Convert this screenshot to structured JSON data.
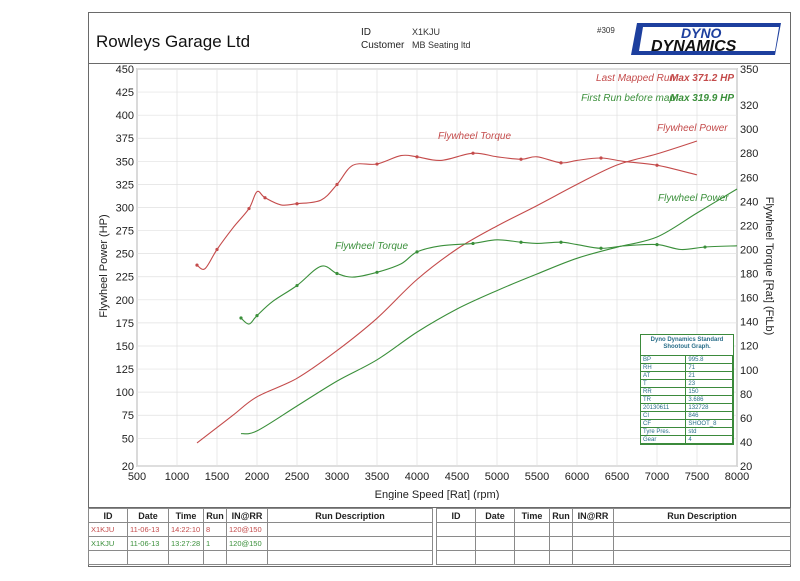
{
  "header": {
    "garage_name": "Rowleys Garage Ltd",
    "id_label": "ID",
    "id_value": "X1KJU",
    "customer_label": "Customer",
    "customer_value": "MB Seating ltd",
    "doc_number": "#309",
    "logo_line1": "DYNO",
    "logo_line2": "DYNAMICS"
  },
  "legend": {
    "last_run_label": "Last Mapped Run",
    "last_run_max": "Max 371.2 HP",
    "first_run_label": "First Run before map",
    "first_run_max": "Max 319.9 HP"
  },
  "chart_data": {
    "type": "line",
    "xlabel": "Engine Speed [Rat] (rpm)",
    "ylabel": "Flywheel Power (HP)",
    "y2label": "Flywheel Torque [Rat] (FtLb)",
    "xlim": [
      500,
      8000
    ],
    "ylim": [
      20,
      450
    ],
    "y2lim": [
      20,
      350
    ],
    "x_ticks": [
      500,
      1000,
      1500,
      2000,
      2500,
      3000,
      3500,
      4000,
      4500,
      5000,
      5500,
      6000,
      6500,
      7000,
      7500,
      8000
    ],
    "y_ticks": [
      20,
      50,
      75,
      100,
      125,
      150,
      175,
      200,
      225,
      250,
      275,
      300,
      325,
      350,
      375,
      400,
      425,
      450
    ],
    "y2_ticks": [
      20,
      40,
      60,
      80,
      100,
      120,
      140,
      160,
      180,
      200,
      220,
      240,
      260,
      280,
      300,
      320,
      350
    ],
    "grid": true,
    "annotations": [
      {
        "text": "Flywheel Torque",
        "series": "last"
      },
      {
        "text": "Flywheel Power",
        "series": "last"
      },
      {
        "text": "Flywheel Torque",
        "series": "first"
      },
      {
        "text": "Flywheel Power",
        "series": "first"
      }
    ],
    "series": [
      {
        "color": "#c44b4b",
        "axis": "left",
        "x": [
          1250,
          1400,
          1700,
          2000,
          2500,
          3000,
          3500,
          4000,
          4500,
          5000,
          5500,
          6000,
          6500,
          7000,
          7500
        ],
        "y": [
          45,
          55,
          75,
          95,
          115,
          145,
          180,
          222,
          255,
          280,
          302,
          325,
          346,
          358,
          372
        ]
      },
      {
        "color": "#c44b4b",
        "axis": "right",
        "x": [
          1250,
          1350,
          1500,
          1700,
          1900,
          2000,
          2100,
          2300,
          2500,
          2800,
          3000,
          3200,
          3500,
          3800,
          4000,
          4300,
          4700,
          5000,
          5300,
          5500,
          5800,
          6000,
          6300,
          6600,
          7000,
          7500
        ],
        "y": [
          187,
          184,
          200,
          218,
          234,
          248,
          243,
          237,
          238,
          241,
          254,
          270,
          271,
          278,
          277,
          274,
          280,
          277,
          275,
          277,
          272,
          274,
          276,
          273,
          270,
          262
        ]
      },
      {
        "color": "#3a8f3a",
        "axis": "left",
        "x": [
          1800,
          2000,
          2500,
          3000,
          3500,
          4000,
          4500,
          5000,
          5500,
          6000,
          6500,
          7000,
          7500,
          8000
        ],
        "y": [
          55,
          58,
          85,
          112,
          135,
          165,
          190,
          210,
          228,
          245,
          257,
          268,
          294,
          320
        ]
      },
      {
        "color": "#3a8f3a",
        "axis": "right",
        "x": [
          1800,
          1900,
          2000,
          2200,
          2500,
          2800,
          3000,
          3200,
          3500,
          3800,
          4000,
          4300,
          4700,
          5000,
          5300,
          5500,
          5800,
          6000,
          6300,
          6600,
          7000,
          7300,
          7600,
          8000
        ],
        "y": [
          143,
          138,
          145,
          157,
          170,
          186,
          180,
          177,
          181,
          188,
          198,
          203,
          205,
          208,
          206,
          205,
          206,
          204,
          201,
          203,
          204,
          200,
          202,
          203
        ]
      }
    ]
  },
  "info_box": {
    "title": "Dyno Dynamics Standard Shootout Graph.",
    "rows": [
      [
        "BP",
        "995.8"
      ],
      [
        "RH",
        "71"
      ],
      [
        "AT",
        "21"
      ],
      [
        "T",
        "23"
      ],
      [
        "RR",
        "150"
      ],
      [
        "TR",
        "3.686"
      ],
      [
        "20130611",
        "132728"
      ],
      [
        "CI",
        "846"
      ],
      [
        "CF",
        "SHOOT_8"
      ],
      [
        "Tyre Pres.",
        "std"
      ],
      [
        "Gear",
        "4"
      ]
    ]
  },
  "runs_table": {
    "headers": [
      "ID",
      "Date",
      "Time",
      "Run",
      "IN@RR",
      "Run Description"
    ],
    "rows": [
      [
        "X1KJU",
        "11-06-13",
        "14:22:10",
        "8",
        "120@150",
        ""
      ],
      [
        "X1KJU",
        "11-06-13",
        "13:27:28",
        "1",
        "120@150",
        ""
      ]
    ]
  }
}
